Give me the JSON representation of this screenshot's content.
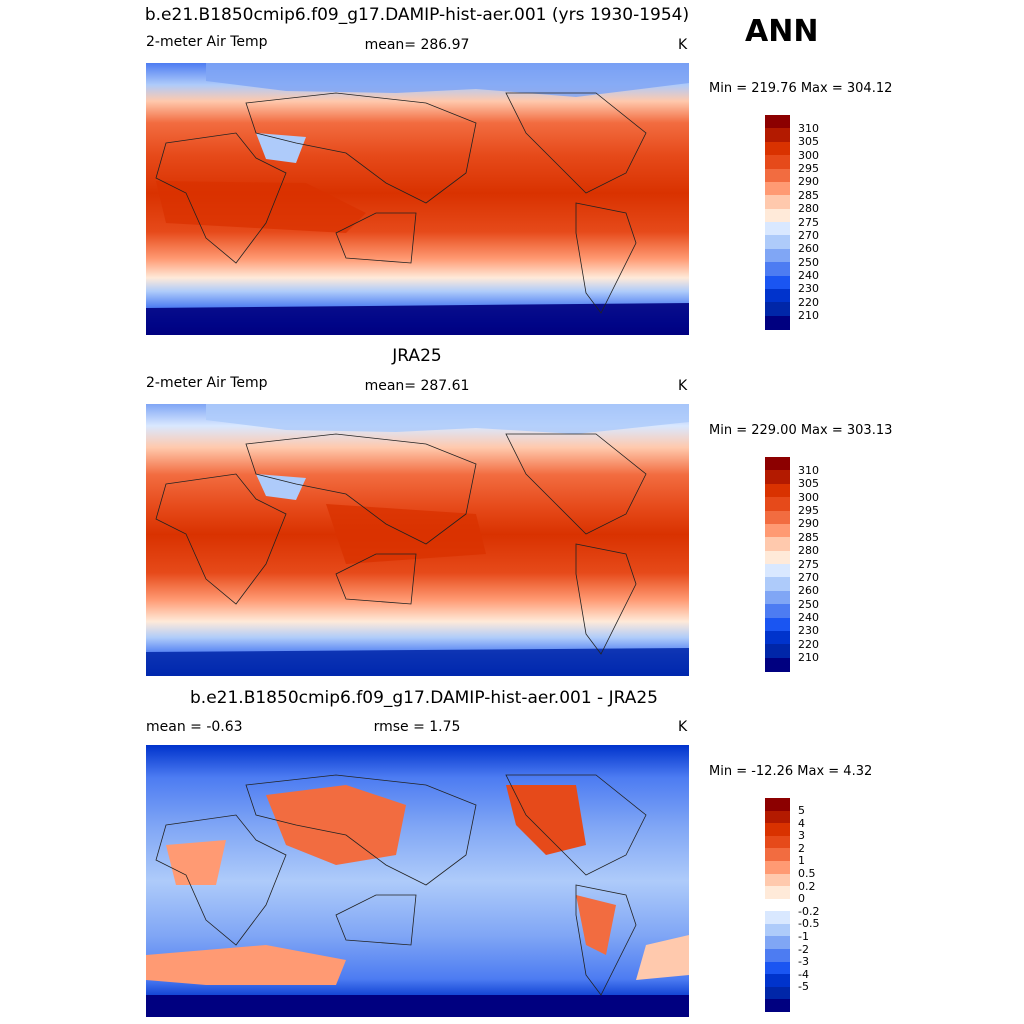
{
  "season": "ANN",
  "colors": {
    "temp": [
      "#000080",
      "#0026a8",
      "#0033cc",
      "#1a55f2",
      "#4d7cf2",
      "#80a6f5",
      "#aecbfa",
      "#d9e8ff",
      "#ffead9",
      "#ffc9ad",
      "#ff9a73",
      "#f26c40",
      "#e64a1a",
      "#d93200",
      "#b31a00",
      "#8c0000"
    ],
    "diff": [
      "#000080",
      "#0026a8",
      "#0033cc",
      "#1a55f2",
      "#4d7cf2",
      "#80a6f5",
      "#aecbfa",
      "#d9e8ff",
      "#ffffff",
      "#ffead9",
      "#ffc9ad",
      "#ff9a73",
      "#f26c40",
      "#e64a1a",
      "#d93200",
      "#b31a00",
      "#8c0000"
    ]
  },
  "panels": [
    {
      "title": "b.e21.B1850cmip6.f09_g17.DAMIP-hist-aer.001 (yrs 1930-1954)",
      "left_label": "2-meter Air Temp",
      "center_label": "mean= 286.97",
      "units": "K",
      "minmax": "Min = 219.76 Max = 304.12",
      "ticks": [
        "310",
        "305",
        "300",
        "295",
        "290",
        "285",
        "280",
        "275",
        "270",
        "260",
        "250",
        "240",
        "230",
        "220",
        "210"
      ]
    },
    {
      "title": "JRA25",
      "left_label": "2-meter Air Temp",
      "center_label": "mean= 287.61",
      "units": "K",
      "minmax": "Min = 229.00 Max = 303.13",
      "ticks": [
        "310",
        "305",
        "300",
        "295",
        "290",
        "285",
        "280",
        "275",
        "270",
        "260",
        "250",
        "240",
        "230",
        "220",
        "210"
      ]
    },
    {
      "title": "b.e21.B1850cmip6.f09_g17.DAMIP-hist-aer.001 - JRA25",
      "left_label": "mean =  -0.63",
      "center_label": "rmse =   1.75",
      "units": "K",
      "minmax": "Min = -12.26 Max =   4.32",
      "ticks": [
        "5",
        "4",
        "3",
        "2",
        "1",
        "0.5",
        "0.2",
        "0",
        "-0.2",
        "-0.5",
        "-1",
        "-2",
        "-3",
        "-4",
        "-5"
      ]
    }
  ]
}
